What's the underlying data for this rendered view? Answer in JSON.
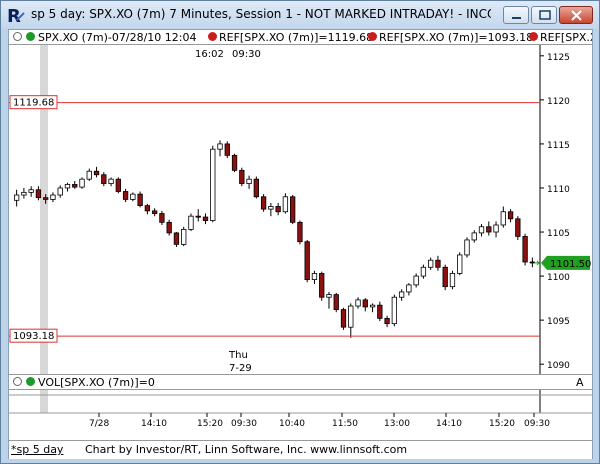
{
  "window": {
    "title": "sp 5 day: SPX.XO (7m) 7 Minutes, Session 1 - NOT MARKED INTRADAY! - INCO...",
    "app_icon": "investor-rt-icon"
  },
  "legend": {
    "main": "SPX.XO (7m)-07/28/10 12:04",
    "ref1": "REF[SPX.XO (7m)]=1119.68",
    "ref2": "REF[SPX.XO (7m)]=1093.18",
    "ref3": "REF[SPX.XO"
  },
  "volume_panel": {
    "label": "VOL[SPX.XO (7m)]=0",
    "collapse_btn": "A"
  },
  "status_bar": {
    "tab": "*sp 5 day",
    "credit": "Chart by Investor/RT, Linn Software, Inc. www.linnsoft.com"
  },
  "chart_data": {
    "type": "candlestick",
    "y_axis": {
      "ticks": [
        1090,
        1095,
        1100,
        1105,
        1110,
        1115,
        1120,
        1125
      ],
      "range": [
        1089,
        1126
      ]
    },
    "x_axis": {
      "tick_labels": [
        "7/28",
        "14:10",
        "15:20",
        "09:30",
        "10:40",
        "11:50",
        "13:00",
        "14:10",
        "15:20",
        "09:30"
      ]
    },
    "top_annotation": [
      "16:02",
      "09:30"
    ],
    "session_label": [
      "Thu",
      "7-29"
    ],
    "reference_lines": [
      {
        "value": 1119.68,
        "label": "1119.68",
        "color": "#e03030"
      },
      {
        "value": 1093.18,
        "label": "1093.18",
        "color": "#e03030"
      }
    ],
    "last_price": {
      "value": 1101.5,
      "label": "1101.50",
      "color": "#20a020"
    },
    "candles": [
      [
        1108.6,
        1109.8,
        1107.9,
        1109.2
      ],
      [
        1109.2,
        1110.0,
        1108.8,
        1109.5
      ],
      [
        1109.5,
        1110.2,
        1109.0,
        1109.8
      ],
      [
        1109.8,
        1110.2,
        1108.6,
        1108.9
      ],
      [
        1108.9,
        1109.3,
        1108.2,
        1108.7
      ],
      [
        1108.7,
        1109.5,
        1108.4,
        1109.2
      ],
      [
        1109.2,
        1110.3,
        1108.9,
        1110.0
      ],
      [
        1110.0,
        1110.6,
        1109.6,
        1110.4
      ],
      [
        1110.4,
        1110.8,
        1109.9,
        1110.1
      ],
      [
        1110.1,
        1111.2,
        1109.9,
        1111.0
      ],
      [
        1111.0,
        1112.2,
        1110.8,
        1111.9
      ],
      [
        1111.9,
        1112.4,
        1111.2,
        1111.5
      ],
      [
        1111.5,
        1111.8,
        1110.2,
        1110.5
      ],
      [
        1110.5,
        1111.2,
        1110.2,
        1111.0
      ],
      [
        1111.0,
        1111.2,
        1109.4,
        1109.6
      ],
      [
        1109.6,
        1109.9,
        1108.4,
        1108.7
      ],
      [
        1108.7,
        1109.5,
        1108.5,
        1109.3
      ],
      [
        1109.3,
        1109.6,
        1107.8,
        1108.0
      ],
      [
        1108.0,
        1108.2,
        1107.0,
        1107.4
      ],
      [
        1107.4,
        1107.7,
        1106.8,
        1107.1
      ],
      [
        1107.1,
        1107.4,
        1105.8,
        1106.1
      ],
      [
        1106.1,
        1106.4,
        1104.6,
        1104.9
      ],
      [
        1104.9,
        1105.0,
        1103.3,
        1103.6
      ],
      [
        1103.6,
        1105.6,
        1103.4,
        1105.3
      ],
      [
        1105.3,
        1107.1,
        1105.1,
        1106.8
      ],
      [
        1106.8,
        1107.6,
        1106.2,
        1106.7
      ],
      [
        1106.7,
        1107.1,
        1105.9,
        1106.3
      ],
      [
        1106.3,
        1114.8,
        1106.1,
        1114.4
      ],
      [
        1114.4,
        1115.4,
        1113.6,
        1115.0
      ],
      [
        1115.0,
        1115.3,
        1113.4,
        1113.7
      ],
      [
        1113.7,
        1113.9,
        1111.8,
        1112.0
      ],
      [
        1112.0,
        1112.3,
        1110.2,
        1110.5
      ],
      [
        1110.5,
        1111.4,
        1109.9,
        1111.0
      ],
      [
        1111.0,
        1111.3,
        1108.8,
        1109.0
      ],
      [
        1109.0,
        1109.3,
        1107.3,
        1107.6
      ],
      [
        1107.6,
        1108.3,
        1106.8,
        1107.9
      ],
      [
        1107.9,
        1108.3,
        1106.9,
        1107.3
      ],
      [
        1107.3,
        1109.4,
        1107.1,
        1109.0
      ],
      [
        1109.0,
        1109.2,
        1105.9,
        1106.1
      ],
      [
        1106.1,
        1106.3,
        1103.6,
        1103.9
      ],
      [
        1103.9,
        1104.1,
        1099.3,
        1099.6
      ],
      [
        1099.6,
        1100.6,
        1099.1,
        1100.3
      ],
      [
        1100.3,
        1100.5,
        1097.2,
        1097.6
      ],
      [
        1097.6,
        1098.2,
        1096.3,
        1097.9
      ],
      [
        1097.9,
        1098.1,
        1095.9,
        1096.2
      ],
      [
        1096.2,
        1096.4,
        1093.9,
        1094.2
      ],
      [
        1094.2,
        1096.9,
        1093.0,
        1096.6
      ],
      [
        1096.6,
        1097.6,
        1096.3,
        1097.3
      ],
      [
        1097.3,
        1097.5,
        1096.0,
        1096.5
      ],
      [
        1096.5,
        1096.9,
        1095.9,
        1096.7
      ],
      [
        1096.7,
        1097.1,
        1094.9,
        1095.2
      ],
      [
        1095.2,
        1095.5,
        1094.2,
        1094.6
      ],
      [
        1094.6,
        1097.9,
        1094.3,
        1097.6
      ],
      [
        1097.6,
        1098.5,
        1097.2,
        1098.2
      ],
      [
        1098.2,
        1099.2,
        1097.8,
        1099.0
      ],
      [
        1099.0,
        1100.3,
        1098.7,
        1100.0
      ],
      [
        1100.0,
        1101.3,
        1099.7,
        1101.0
      ],
      [
        1101.0,
        1102.1,
        1100.7,
        1101.8
      ],
      [
        1101.8,
        1102.3,
        1100.6,
        1101.0
      ],
      [
        1101.0,
        1101.3,
        1098.4,
        1098.8
      ],
      [
        1098.8,
        1100.6,
        1098.5,
        1100.3
      ],
      [
        1100.3,
        1102.7,
        1100.1,
        1102.4
      ],
      [
        1102.4,
        1104.4,
        1102.1,
        1104.1
      ],
      [
        1104.1,
        1105.2,
        1103.8,
        1104.9
      ],
      [
        1104.9,
        1105.9,
        1104.5,
        1105.6
      ],
      [
        1105.6,
        1106.2,
        1104.6,
        1105.0
      ],
      [
        1105.0,
        1106.2,
        1104.4,
        1105.8
      ],
      [
        1105.8,
        1107.9,
        1105.5,
        1107.3
      ],
      [
        1107.3,
        1107.6,
        1106.1,
        1106.5
      ],
      [
        1106.5,
        1106.8,
        1104.1,
        1104.5
      ],
      [
        1104.5,
        1104.8,
        1101.2,
        1101.6
      ],
      [
        1101.6,
        1102.1,
        1101.0,
        1101.5
      ]
    ]
  }
}
